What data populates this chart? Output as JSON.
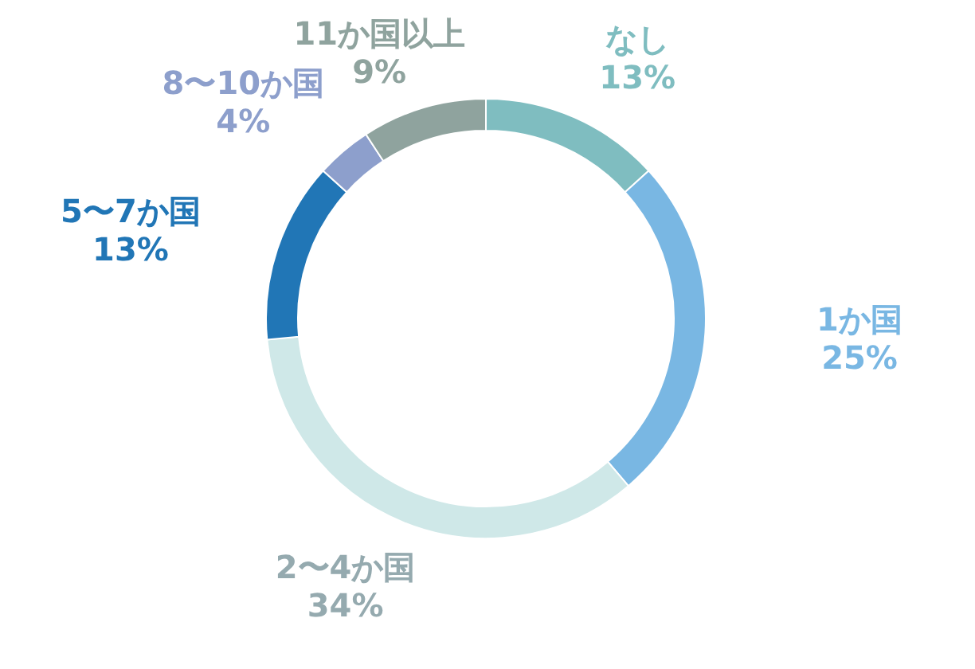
{
  "chart_data": {
    "type": "donut",
    "categories": [
      "なし",
      "1か国",
      "2〜4か国",
      "5〜7か国",
      "8〜10か国",
      "11か国以上"
    ],
    "values": [
      13,
      25,
      34,
      13,
      4,
      9
    ],
    "colors": [
      "#7fbdc0",
      "#79b7e3",
      "#cfe8e8",
      "#2176b6",
      "#8d9fcc",
      "#8fa39e"
    ],
    "value_labels": [
      "13%",
      "25%",
      "34%",
      "13%",
      "4%",
      "9%"
    ]
  }
}
